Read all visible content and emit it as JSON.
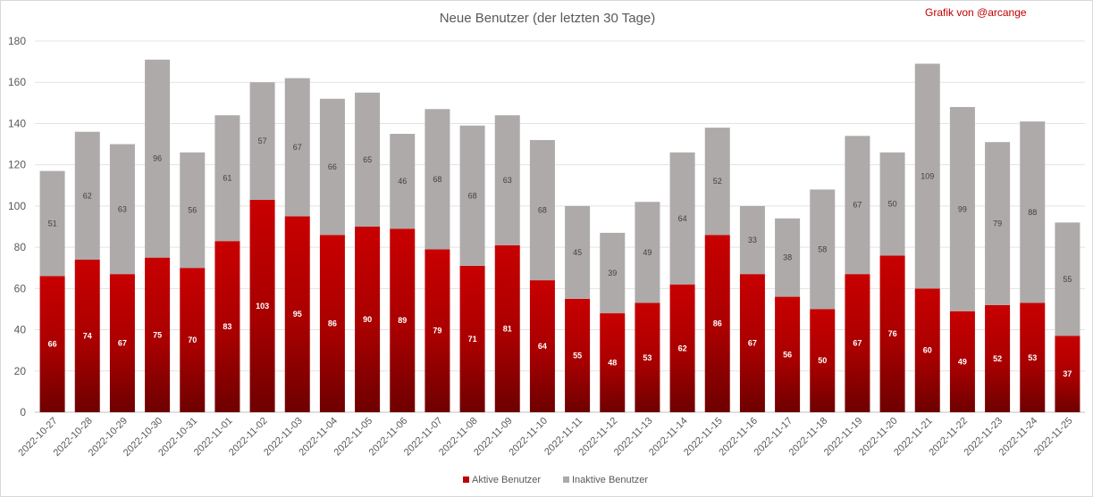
{
  "chart_data": {
    "type": "bar",
    "stacked": true,
    "title": "Neue Benutzer (der letzten 30 Tage)",
    "annotation": "Grafik von @arcange",
    "xlabel": "",
    "ylabel": "",
    "ylim": [
      0,
      180
    ],
    "ytick_step": 20,
    "grid": true,
    "legend_position": "bottom",
    "categories": [
      "2022-10-27",
      "2022-10-28",
      "2022-10-29",
      "2022-10-30",
      "2022-10-31",
      "2022-11-01",
      "2022-11-02",
      "2022-11-03",
      "2022-11-04",
      "2022-11-05",
      "2022-11-06",
      "2022-11-07",
      "2022-11-08",
      "2022-11-09",
      "2022-11-10",
      "2022-11-11",
      "2022-11-12",
      "2022-11-13",
      "2022-11-14",
      "2022-11-15",
      "2022-11-16",
      "2022-11-17",
      "2022-11-18",
      "2022-11-19",
      "2022-11-20",
      "2022-11-21",
      "2022-11-22",
      "2022-11-23",
      "2022-11-24",
      "2022-11-25"
    ],
    "series": [
      {
        "name": "Aktive Benutzer",
        "color": "#c00000",
        "values": [
          66,
          74,
          67,
          75,
          70,
          83,
          103,
          95,
          86,
          90,
          89,
          79,
          71,
          81,
          64,
          55,
          48,
          53,
          62,
          86,
          67,
          56,
          50,
          67,
          76,
          60,
          49,
          52,
          53,
          37
        ]
      },
      {
        "name": "Inaktive Benutzer",
        "color": "#aeaaaa",
        "values": [
          51,
          62,
          63,
          96,
          56,
          61,
          57,
          67,
          66,
          65,
          46,
          68,
          68,
          63,
          68,
          45,
          39,
          49,
          64,
          52,
          33,
          38,
          58,
          67,
          50,
          109,
          99,
          79,
          88,
          55
        ]
      }
    ]
  }
}
